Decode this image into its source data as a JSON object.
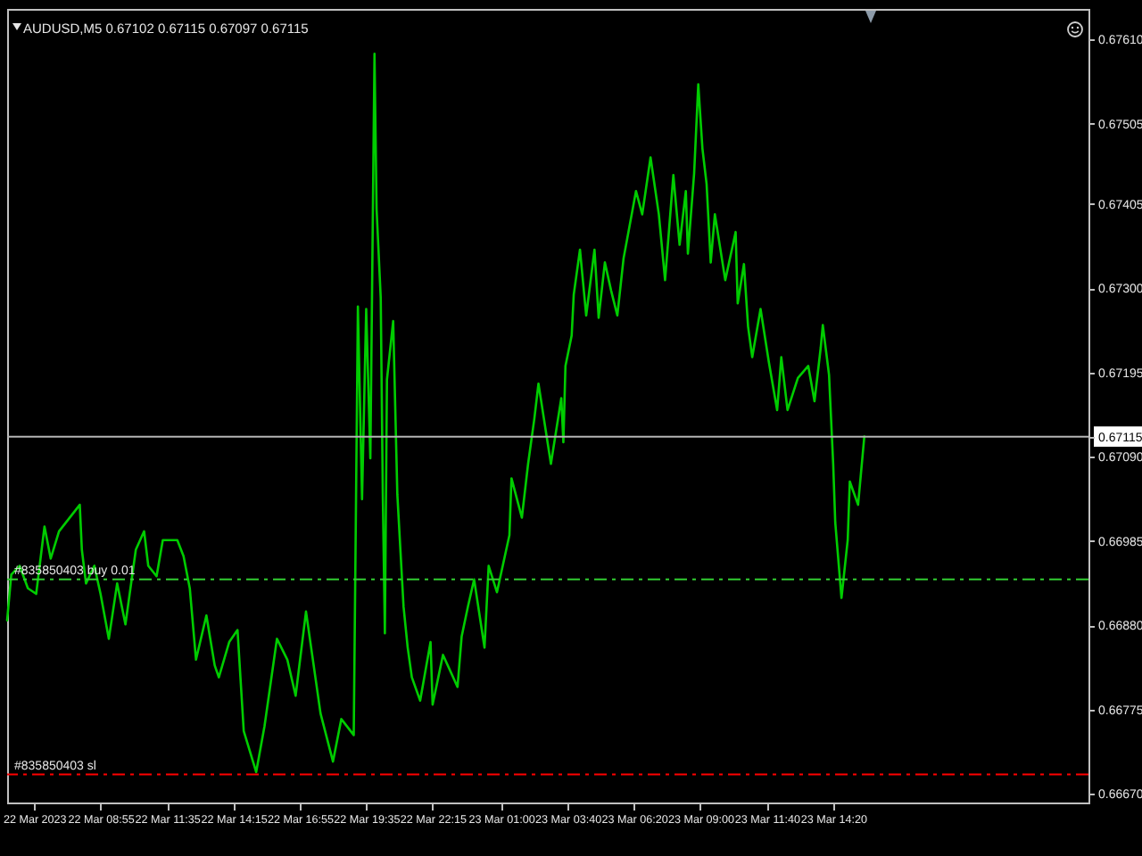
{
  "chart_data": {
    "type": "line",
    "title": "AUDUSD,M5 0.67102 0.67115 0.67097 0.67115",
    "x": [
      "2023-03-22T05:10",
      "2023-03-22T05:20",
      "2023-03-22T05:40",
      "2023-03-22T06:00",
      "2023-03-22T06:20",
      "2023-03-22T06:40",
      "2023-03-22T06:55",
      "2023-03-22T07:15",
      "2023-03-22T08:05",
      "2023-03-22T08:10",
      "2023-03-22T08:20",
      "2023-03-22T08:40",
      "2023-03-22T08:55",
      "2023-03-22T09:15",
      "2023-03-22T09:35",
      "2023-03-22T09:55",
      "2023-03-22T10:20",
      "2023-03-22T10:40",
      "2023-03-22T10:50",
      "2023-03-22T11:10",
      "2023-03-22T11:25",
      "2023-03-22T12:00",
      "2023-03-22T12:15",
      "2023-03-22T12:30",
      "2023-03-22T12:45",
      "2023-03-22T13:10",
      "2023-03-22T13:30",
      "2023-03-22T13:40",
      "2023-03-22T14:05",
      "2023-03-22T14:25",
      "2023-03-22T14:40",
      "2023-03-22T15:10",
      "2023-03-22T15:30",
      "2023-03-22T16:00",
      "2023-03-22T16:25",
      "2023-03-22T16:45",
      "2023-03-22T17:10",
      "2023-03-22T17:45",
      "2023-03-22T18:15",
      "2023-03-22T18:35",
      "2023-03-22T19:05",
      "2023-03-22T19:15",
      "2023-03-22T19:25",
      "2023-03-22T19:35",
      "2023-03-22T19:45",
      "2023-03-22T19:55",
      "2023-03-22T20:00",
      "2023-03-22T20:10",
      "2023-03-22T20:15",
      "2023-03-22T20:20",
      "2023-03-22T20:25",
      "2023-03-22T20:40",
      "2023-03-22T20:50",
      "2023-03-22T21:05",
      "2023-03-22T21:15",
      "2023-03-22T21:25",
      "2023-03-22T21:45",
      "2023-03-22T22:10",
      "2023-03-22T22:15",
      "2023-03-22T22:40",
      "2023-03-22T23:15",
      "2023-03-22T23:25",
      "2023-03-22T23:40",
      "2023-03-22T23:55",
      "2023-03-23T00:20",
      "2023-03-23T00:30",
      "2023-03-23T00:50",
      "2023-03-23T01:20",
      "2023-03-23T01:25",
      "2023-03-23T01:50",
      "2023-03-23T02:05",
      "2023-03-23T02:20",
      "2023-03-23T02:30",
      "2023-03-23T03:00",
      "2023-03-23T03:25",
      "2023-03-23T03:30",
      "2023-03-23T03:35",
      "2023-03-23T03:50",
      "2023-03-23T03:55",
      "2023-03-23T04:10",
      "2023-03-23T04:25",
      "2023-03-23T04:45",
      "2023-03-23T04:55",
      "2023-03-23T05:10",
      "2023-03-23T05:25",
      "2023-03-23T05:40",
      "2023-03-23T05:55",
      "2023-03-23T06:25",
      "2023-03-23T06:40",
      "2023-03-23T07:00",
      "2023-03-23T07:20",
      "2023-03-23T07:35",
      "2023-03-23T07:55",
      "2023-03-23T08:10",
      "2023-03-23T08:25",
      "2023-03-23T08:30",
      "2023-03-23T08:45",
      "2023-03-23T08:55",
      "2023-03-23T09:05",
      "2023-03-23T09:15",
      "2023-03-23T09:25",
      "2023-03-23T09:35",
      "2023-03-23T10:00",
      "2023-03-23T10:25",
      "2023-03-23T10:30",
      "2023-03-23T10:45",
      "2023-03-23T10:55",
      "2023-03-23T11:05",
      "2023-03-23T11:25",
      "2023-03-23T11:45",
      "2023-03-23T12:05",
      "2023-03-23T12:15",
      "2023-03-23T12:30",
      "2023-03-23T12:55",
      "2023-03-23T13:20",
      "2023-03-23T13:35",
      "2023-03-23T13:50",
      "2023-03-23T13:55",
      "2023-03-23T14:10",
      "2023-03-23T14:20",
      "2023-03-23T14:25",
      "2023-03-23T14:40",
      "2023-03-23T14:55",
      "2023-03-23T15:00",
      "2023-03-23T15:20",
      "2023-03-23T15:35"
    ],
    "series": [
      {
        "color": "#00cc00",
        "values": [
          0.66886,
          0.66943,
          0.66954,
          0.66926,
          0.66919,
          0.67003,
          0.66963,
          0.66997,
          0.6703,
          0.66974,
          0.66932,
          0.66954,
          0.66919,
          0.66863,
          0.66932,
          0.66881,
          0.66974,
          0.66997,
          0.66954,
          0.66941,
          0.66986,
          0.66986,
          0.66966,
          0.66926,
          0.66837,
          0.66892,
          0.6683,
          0.66815,
          0.66859,
          0.66874,
          0.66748,
          0.66697,
          0.66754,
          0.66863,
          0.66837,
          0.66792,
          0.66897,
          0.6677,
          0.6671,
          0.66763,
          0.66743,
          0.67277,
          0.67037,
          0.67274,
          0.67088,
          0.67592,
          0.67399,
          0.67288,
          0.67043,
          0.6687,
          0.67186,
          0.67259,
          0.67043,
          0.66903,
          0.66852,
          0.66815,
          0.66786,
          0.66859,
          0.66781,
          0.66843,
          0.66803,
          0.66866,
          0.66903,
          0.66937,
          0.66852,
          0.66954,
          0.66921,
          0.66992,
          0.67063,
          0.67014,
          0.67081,
          0.67137,
          0.67181,
          0.67081,
          0.67163,
          0.67108,
          0.67203,
          0.67241,
          0.67292,
          0.67348,
          0.67266,
          0.67348,
          0.67263,
          0.67332,
          0.67297,
          0.67266,
          0.67337,
          0.67421,
          0.67392,
          0.67463,
          0.67392,
          0.6731,
          0.67441,
          0.67354,
          0.67421,
          0.67343,
          0.67443,
          0.67554,
          0.67474,
          0.6743,
          0.67332,
          0.67392,
          0.6731,
          0.6737,
          0.67281,
          0.6733,
          0.67252,
          0.67214,
          0.67274,
          0.67208,
          0.67148,
          0.67214,
          0.67148,
          0.67188,
          0.67203,
          0.67159,
          0.67226,
          0.67254,
          0.67192,
          0.67081,
          0.67008,
          0.66914,
          0.66986,
          0.67059,
          0.6703,
          0.67115
        ]
      }
    ],
    "xlim": [
      "2023-03-22T05:10",
      "2023-03-24T00:35"
    ],
    "xticks": [
      {
        "value": "2023-03-22T06:15",
        "label": "22 Mar 2023"
      },
      {
        "value": "2023-03-22T08:55",
        "label": "22 Mar 08:55"
      },
      {
        "value": "2023-03-22T11:35",
        "label": "22 Mar 11:35"
      },
      {
        "value": "2023-03-22T14:15",
        "label": "22 Mar 14:15"
      },
      {
        "value": "2023-03-22T16:55",
        "label": "22 Mar 16:55"
      },
      {
        "value": "2023-03-22T19:35",
        "label": "22 Mar 19:35"
      },
      {
        "value": "2023-03-22T22:15",
        "label": "22 Mar 22:15"
      },
      {
        "value": "2023-03-23T01:00",
        "label": "23 Mar 01:00"
      },
      {
        "value": "2023-03-23T03:40",
        "label": "23 Mar 03:40"
      },
      {
        "value": "2023-03-23T06:20",
        "label": "23 Mar 06:20"
      },
      {
        "value": "2023-03-23T09:00",
        "label": "23 Mar 09:00"
      },
      {
        "value": "2023-03-23T11:40",
        "label": "23 Mar 11:40"
      },
      {
        "value": "2023-03-23T14:20",
        "label": "23 Mar 14:20"
      }
    ],
    "ylim": [
      0.66659,
      0.67648
    ],
    "yticks": [
      {
        "value": 0.6761,
        "label": "0.67610"
      },
      0.67505,
      0.67405,
      {
        "value": 0.673,
        "label": "0.67300"
      },
      0.67195,
      0.67115,
      {
        "value": 0.6709,
        "label": "0.67090"
      },
      0.66985,
      {
        "value": 0.6688,
        "label": "0.66880"
      },
      0.66775,
      {
        "value": 0.6667,
        "label": "0.66670"
      }
    ],
    "ref_lines": [
      {
        "axis": "y",
        "value": 0.67115,
        "color": "#b4b4b4"
      },
      {
        "axis": "y",
        "value": 0.66937,
        "label": "#835850403 buy 0.01",
        "color": "#32cd32",
        "line_style": "dashdot"
      },
      {
        "axis": "y",
        "value": 0.66694,
        "label": "#835850403 sl",
        "color": "#ff0000",
        "line_style": "dashdot"
      }
    ]
  }
}
